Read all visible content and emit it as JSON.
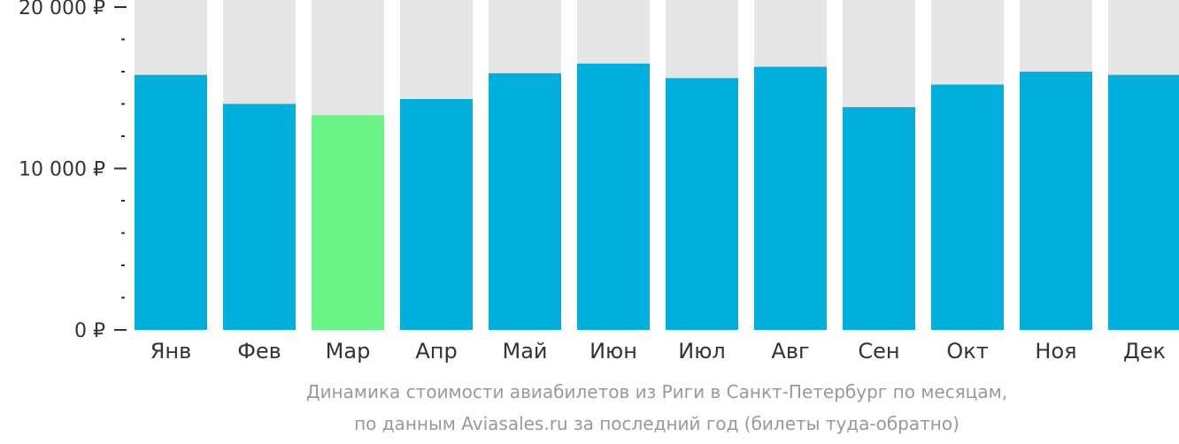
{
  "chart_data": {
    "type": "bar",
    "categories": [
      "Янв",
      "Фев",
      "Мар",
      "Апр",
      "Май",
      "Июн",
      "Июл",
      "Авг",
      "Сен",
      "Окт",
      "Ноя",
      "Дек"
    ],
    "values": [
      15800,
      14000,
      13300,
      14300,
      15900,
      16500,
      15600,
      16300,
      13800,
      15200,
      16000,
      15800
    ],
    "ylim": [
      0,
      20000
    ],
    "yticks": [
      {
        "value": 0,
        "label": "0 ₽"
      },
      {
        "value": 10000,
        "label": "10 000 ₽"
      },
      {
        "value": 20000,
        "label": "20 000 ₽"
      }
    ],
    "minor_tick_step": 2000,
    "highlight_index": 2,
    "colors": {
      "bar": "#00afdc",
      "highlight": "#6cf386",
      "background_bar": "#e6e6e6",
      "axis": "#333333"
    },
    "grid": false,
    "legend": "none"
  },
  "caption": {
    "line1": "Динамика стоимости авиабилетов из Риги в Санкт-Петербург по месяцам,",
    "line2": "по данным Aviasales.ru за последний год (билеты туда-обратно)"
  }
}
